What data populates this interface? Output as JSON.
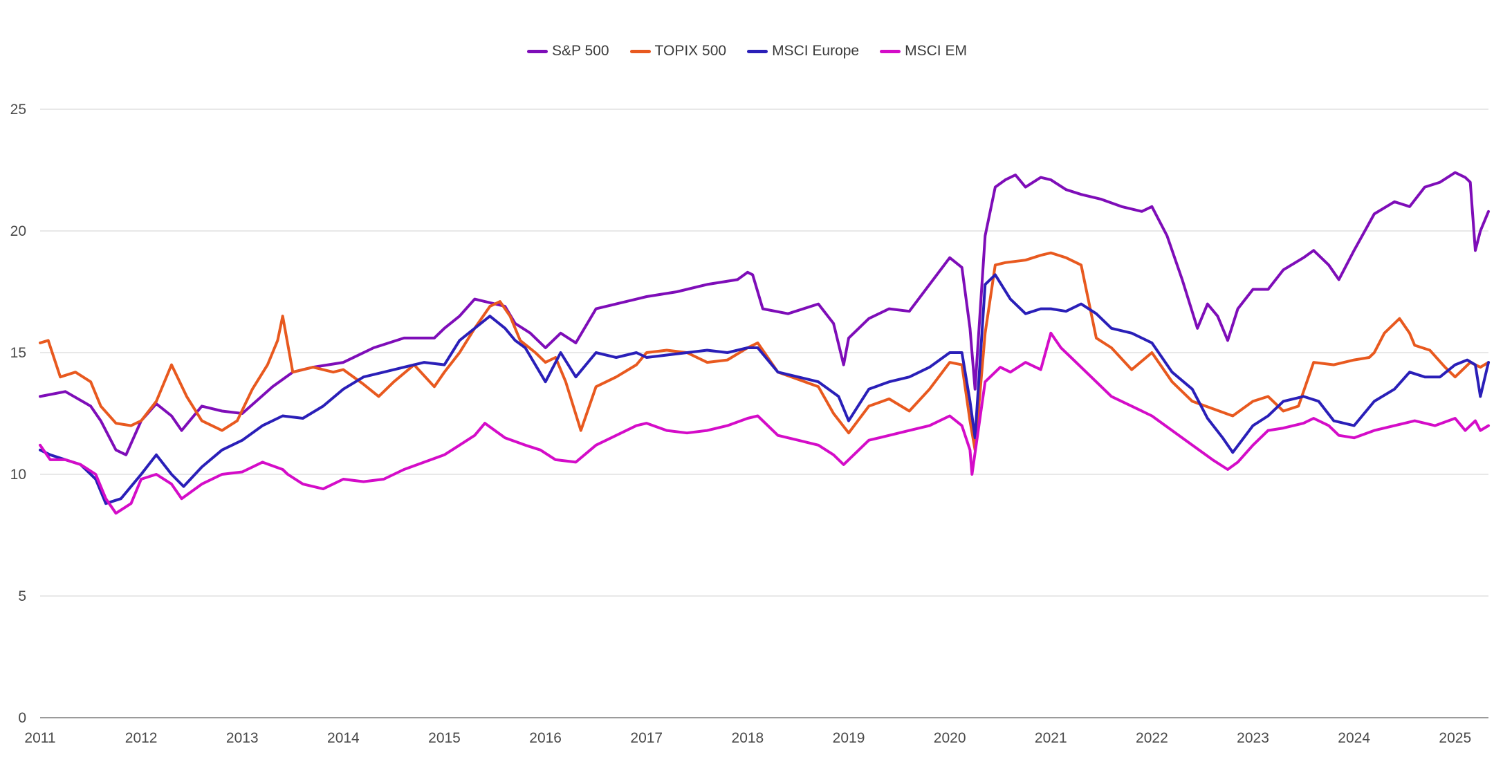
{
  "chart_data": {
    "type": "line",
    "title": "",
    "xlabel": "",
    "ylabel": "",
    "ylim": [
      0,
      25
    ],
    "xlim": [
      2011,
      2025.33
    ],
    "yticks": [
      "0",
      "5",
      "10",
      "15",
      "20",
      "25"
    ],
    "xticks": [
      "2011",
      "2012",
      "2013",
      "2014",
      "2015",
      "2016",
      "2017",
      "2018",
      "2019",
      "2020",
      "2021",
      "2022",
      "2023",
      "2024",
      "2025"
    ],
    "grid": "horizontal",
    "legend_position": "top-center",
    "series": [
      {
        "name": "S&P 500",
        "color": "#7e0db8",
        "x": [
          2011.0,
          2011.25,
          2011.5,
          2011.6,
          2011.75,
          2011.85,
          2012.0,
          2012.15,
          2012.3,
          2012.4,
          2012.6,
          2012.8,
          2013.0,
          2013.3,
          2013.5,
          2013.7,
          2014.0,
          2014.3,
          2014.6,
          2014.9,
          2015.0,
          2015.15,
          2015.3,
          2015.5,
          2015.6,
          2015.7,
          2015.85,
          2016.0,
          2016.15,
          2016.3,
          2016.5,
          2016.7,
          2016.9,
          2017.0,
          2017.3,
          2017.6,
          2017.9,
          2018.0,
          2018.05,
          2018.15,
          2018.4,
          2018.7,
          2018.85,
          2018.95,
          2019.0,
          2019.2,
          2019.4,
          2019.6,
          2019.8,
          2020.0,
          2020.12,
          2020.2,
          2020.25,
          2020.35,
          2020.45,
          2020.55,
          2020.65,
          2020.75,
          2020.9,
          2021.0,
          2021.15,
          2021.3,
          2021.5,
          2021.7,
          2021.9,
          2022.0,
          2022.15,
          2022.3,
          2022.45,
          2022.55,
          2022.65,
          2022.75,
          2022.85,
          2023.0,
          2023.15,
          2023.3,
          2023.5,
          2023.6,
          2023.75,
          2023.85,
          2024.0,
          2024.2,
          2024.4,
          2024.55,
          2024.7,
          2024.85,
          2025.0,
          2025.1,
          2025.15,
          2025.2,
          2025.25,
          2025.33
        ],
        "values": [
          13.2,
          13.4,
          12.8,
          12.2,
          11.0,
          10.8,
          12.2,
          12.9,
          12.4,
          11.8,
          12.8,
          12.6,
          12.5,
          13.6,
          14.2,
          14.4,
          14.6,
          15.2,
          15.6,
          15.6,
          16.0,
          16.5,
          17.2,
          17.0,
          16.9,
          16.2,
          15.8,
          15.2,
          15.8,
          15.4,
          16.8,
          17.0,
          17.2,
          17.3,
          17.5,
          17.8,
          18.0,
          18.3,
          18.2,
          16.8,
          16.6,
          17.0,
          16.2,
          14.5,
          15.6,
          16.4,
          16.8,
          16.7,
          17.8,
          18.9,
          18.5,
          16.0,
          13.5,
          19.8,
          21.8,
          22.1,
          22.3,
          21.8,
          22.2,
          22.1,
          21.7,
          21.5,
          21.3,
          21.0,
          20.8,
          21.0,
          19.8,
          18.0,
          16.0,
          17.0,
          16.5,
          15.5,
          16.8,
          17.6,
          17.6,
          18.4,
          18.9,
          19.2,
          18.6,
          18.0,
          19.2,
          20.7,
          21.2,
          21.0,
          21.8,
          22.0,
          22.4,
          22.2,
          22.0,
          19.2,
          20.0,
          20.8
        ]
      },
      {
        "name": "TOPIX 500",
        "color": "#e8591f",
        "x": [
          2011.0,
          2011.08,
          2011.2,
          2011.35,
          2011.5,
          2011.6,
          2011.75,
          2011.9,
          2012.0,
          2012.15,
          2012.3,
          2012.45,
          2012.6,
          2012.8,
          2012.95,
          2013.1,
          2013.25,
          2013.35,
          2013.4,
          2013.5,
          2013.7,
          2013.9,
          2014.0,
          2014.2,
          2014.35,
          2014.5,
          2014.7,
          2014.9,
          2015.0,
          2015.15,
          2015.3,
          2015.45,
          2015.55,
          2015.65,
          2015.75,
          2015.9,
          2016.0,
          2016.1,
          2016.2,
          2016.35,
          2016.5,
          2016.7,
          2016.9,
          2017.0,
          2017.2,
          2017.4,
          2017.6,
          2017.8,
          2018.0,
          2018.1,
          2018.3,
          2018.5,
          2018.7,
          2018.85,
          2019.0,
          2019.2,
          2019.4,
          2019.6,
          2019.8,
          2020.0,
          2020.12,
          2020.2,
          2020.25,
          2020.35,
          2020.45,
          2020.55,
          2020.75,
          2020.9,
          2021.0,
          2021.15,
          2021.3,
          2021.45,
          2021.6,
          2021.8,
          2022.0,
          2022.2,
          2022.4,
          2022.6,
          2022.8,
          2023.0,
          2023.15,
          2023.3,
          2023.45,
          2023.6,
          2023.8,
          2024.0,
          2024.15,
          2024.2,
          2024.3,
          2024.45,
          2024.55,
          2024.6,
          2024.75,
          2024.9,
          2025.0,
          2025.15,
          2025.25,
          2025.33
        ],
        "values": [
          15.4,
          15.5,
          14.0,
          14.2,
          13.8,
          12.8,
          12.1,
          12.0,
          12.2,
          13.0,
          14.5,
          13.2,
          12.2,
          11.8,
          12.2,
          13.5,
          14.5,
          15.5,
          16.5,
          14.2,
          14.4,
          14.2,
          14.3,
          13.7,
          13.2,
          13.8,
          14.5,
          13.6,
          14.2,
          15.0,
          16.0,
          16.9,
          17.1,
          16.5,
          15.5,
          15.0,
          14.6,
          14.8,
          13.8,
          11.8,
          13.6,
          14.0,
          14.5,
          15.0,
          15.1,
          15.0,
          14.6,
          14.7,
          15.2,
          15.4,
          14.2,
          13.9,
          13.6,
          12.5,
          11.7,
          12.8,
          13.1,
          12.6,
          13.5,
          14.6,
          14.5,
          12.2,
          11.0,
          15.8,
          18.6,
          18.7,
          18.8,
          19.0,
          19.1,
          18.9,
          18.6,
          15.6,
          15.2,
          14.3,
          15.0,
          13.8,
          13.0,
          12.7,
          12.4,
          13.0,
          13.2,
          12.6,
          12.8,
          14.6,
          14.5,
          14.7,
          14.8,
          15.0,
          15.8,
          16.4,
          15.8,
          15.3,
          15.1,
          14.4,
          14.0,
          14.6,
          14.4,
          14.6
        ]
      },
      {
        "name": "MSCI Europe",
        "color": "#2a1fb8",
        "x": [
          2011.0,
          2011.1,
          2011.25,
          2011.4,
          2011.55,
          2011.65,
          2011.8,
          2012.0,
          2012.15,
          2012.3,
          2012.42,
          2012.6,
          2012.8,
          2013.0,
          2013.2,
          2013.4,
          2013.6,
          2013.8,
          2014.0,
          2014.2,
          2014.4,
          2014.6,
          2014.8,
          2015.0,
          2015.15,
          2015.3,
          2015.45,
          2015.6,
          2015.7,
          2015.8,
          2016.0,
          2016.15,
          2016.3,
          2016.5,
          2016.7,
          2016.9,
          2017.0,
          2017.2,
          2017.4,
          2017.6,
          2017.8,
          2018.0,
          2018.1,
          2018.3,
          2018.5,
          2018.7,
          2018.9,
          2019.0,
          2019.2,
          2019.4,
          2019.6,
          2019.8,
          2020.0,
          2020.12,
          2020.2,
          2020.25,
          2020.35,
          2020.45,
          2020.6,
          2020.75,
          2020.9,
          2021.0,
          2021.15,
          2021.3,
          2021.45,
          2021.6,
          2021.8,
          2022.0,
          2022.2,
          2022.4,
          2022.55,
          2022.7,
          2022.8,
          2023.0,
          2023.15,
          2023.3,
          2023.5,
          2023.65,
          2023.8,
          2024.0,
          2024.2,
          2024.4,
          2024.55,
          2024.7,
          2024.85,
          2025.0,
          2025.12,
          2025.2,
          2025.25,
          2025.33
        ],
        "values": [
          11.0,
          10.8,
          10.6,
          10.4,
          9.8,
          8.8,
          9.0,
          10.0,
          10.8,
          10.0,
          9.5,
          10.3,
          11.0,
          11.4,
          12.0,
          12.4,
          12.3,
          12.8,
          13.5,
          14.0,
          14.2,
          14.4,
          14.6,
          14.5,
          15.5,
          16.0,
          16.5,
          16.0,
          15.5,
          15.2,
          13.8,
          15.0,
          14.0,
          15.0,
          14.8,
          15.0,
          14.8,
          14.9,
          15.0,
          15.1,
          15.0,
          15.2,
          15.2,
          14.2,
          14.0,
          13.8,
          13.2,
          12.2,
          13.5,
          13.8,
          14.0,
          14.4,
          15.0,
          15.0,
          13.0,
          11.5,
          17.8,
          18.2,
          17.2,
          16.6,
          16.8,
          16.8,
          16.7,
          17.0,
          16.6,
          16.0,
          15.8,
          15.4,
          14.2,
          13.5,
          12.3,
          11.5,
          10.9,
          12.0,
          12.4,
          13.0,
          13.2,
          13.0,
          12.2,
          12.0,
          13.0,
          13.5,
          14.2,
          14.0,
          14.0,
          14.5,
          14.7,
          14.5,
          13.2,
          14.6
        ]
      },
      {
        "name": "MSCI EM",
        "color": "#d40cc8",
        "x": [
          2011.0,
          2011.1,
          2011.25,
          2011.4,
          2011.55,
          2011.65,
          2011.75,
          2011.9,
          2012.0,
          2012.15,
          2012.3,
          2012.4,
          2012.6,
          2012.8,
          2013.0,
          2013.2,
          2013.4,
          2013.45,
          2013.6,
          2013.8,
          2014.0,
          2014.2,
          2014.4,
          2014.6,
          2014.8,
          2015.0,
          2015.15,
          2015.3,
          2015.4,
          2015.6,
          2015.8,
          2015.95,
          2016.1,
          2016.3,
          2016.5,
          2016.7,
          2016.9,
          2017.0,
          2017.2,
          2017.4,
          2017.6,
          2017.8,
          2018.0,
          2018.1,
          2018.3,
          2018.5,
          2018.7,
          2018.85,
          2018.95,
          2019.0,
          2019.2,
          2019.4,
          2019.6,
          2019.8,
          2020.0,
          2020.12,
          2020.2,
          2020.22,
          2020.35,
          2020.5,
          2020.6,
          2020.75,
          2020.9,
          2021.0,
          2021.1,
          2021.2,
          2021.4,
          2021.6,
          2021.8,
          2022.0,
          2022.2,
          2022.4,
          2022.6,
          2022.75,
          2022.85,
          2023.0,
          2023.15,
          2023.3,
          2023.5,
          2023.6,
          2023.75,
          2023.85,
          2024.0,
          2024.2,
          2024.4,
          2024.6,
          2024.8,
          2025.0,
          2025.1,
          2025.2,
          2025.25,
          2025.33
        ],
        "values": [
          11.2,
          10.6,
          10.6,
          10.4,
          10.0,
          9.0,
          8.4,
          8.8,
          9.8,
          10.0,
          9.6,
          9.0,
          9.6,
          10.0,
          10.1,
          10.5,
          10.2,
          10.0,
          9.6,
          9.4,
          9.8,
          9.7,
          9.8,
          10.2,
          10.5,
          10.8,
          11.2,
          11.6,
          12.1,
          11.5,
          11.2,
          11.0,
          10.6,
          10.5,
          11.2,
          11.6,
          12.0,
          12.1,
          11.8,
          11.7,
          11.8,
          12.0,
          12.3,
          12.4,
          11.6,
          11.4,
          11.2,
          10.8,
          10.4,
          10.6,
          11.4,
          11.6,
          11.8,
          12.0,
          12.4,
          12.0,
          11.0,
          10.0,
          13.8,
          14.4,
          14.2,
          14.6,
          14.3,
          15.8,
          15.2,
          14.8,
          14.0,
          13.2,
          12.8,
          12.4,
          11.8,
          11.2,
          10.6,
          10.2,
          10.5,
          11.2,
          11.8,
          11.9,
          12.1,
          12.3,
          12.0,
          11.6,
          11.5,
          11.8,
          12.0,
          12.2,
          12.0,
          12.3,
          11.8,
          12.2,
          11.8,
          12.0
        ]
      }
    ]
  }
}
